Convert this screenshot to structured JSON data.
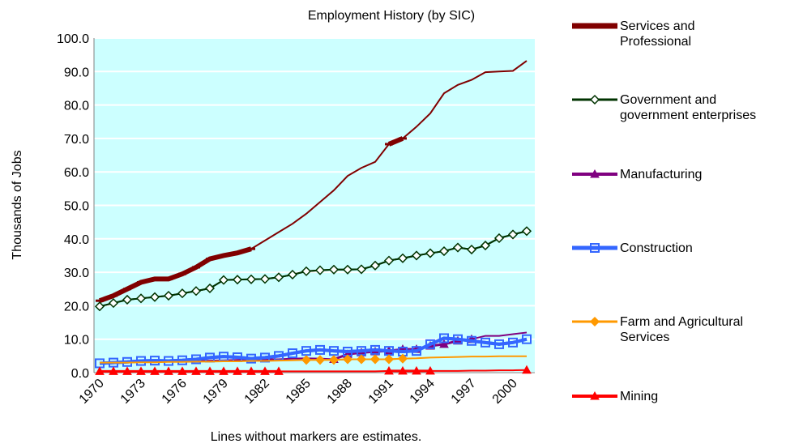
{
  "chart_data": {
    "type": "line",
    "title": "Employment History (by SIC)",
    "y_label": "Thousands of Jobs",
    "note": "Lines without markers are estimates.",
    "background": "#ccffff",
    "grid": true,
    "categories": [
      "1970",
      null,
      null,
      "1973",
      null,
      null,
      "1976",
      null,
      null,
      "1979",
      null,
      null,
      "1982",
      null,
      null,
      "1985",
      null,
      null,
      "1988",
      null,
      null,
      "1991",
      null,
      null,
      "1994",
      null,
      null,
      "1997",
      null,
      null,
      "2000",
      null
    ],
    "ylim": [
      0,
      100
    ],
    "yticks": [
      {
        "value": 0,
        "label": "0.0"
      },
      {
        "value": 10,
        "label": "10.0"
      },
      {
        "value": 20,
        "label": "20.0"
      },
      {
        "value": 30,
        "label": "30.0"
      },
      {
        "value": 40,
        "label": "40.0"
      },
      {
        "value": 50,
        "label": "50.0"
      },
      {
        "value": 60,
        "label": "60.0"
      },
      {
        "value": 70,
        "label": "70.0"
      },
      {
        "value": 80,
        "label": "80.0"
      },
      {
        "value": 90,
        "label": "90.0"
      },
      {
        "value": 100,
        "label": "100.0"
      }
    ],
    "series": [
      {
        "name": "Services and\nProfessional",
        "color": "#800000",
        "marker": "dash",
        "values": [
          21.5,
          23,
          25,
          27,
          28,
          28,
          29.5,
          31.5,
          34,
          35,
          35.8,
          37,
          39.5,
          42,
          44.5,
          47.5,
          51,
          54.5,
          58.8,
          61.2,
          63,
          68.3,
          70,
          73.5,
          77.5,
          83.5,
          86,
          87.5,
          89.8,
          90,
          90.2,
          93.2
        ],
        "marked": [
          true,
          true,
          true,
          true,
          true,
          true,
          true,
          true,
          true,
          true,
          true,
          true,
          false,
          false,
          false,
          false,
          false,
          false,
          false,
          false,
          false,
          true,
          true,
          false,
          false,
          false,
          false,
          false,
          false,
          false,
          false,
          false
        ]
      },
      {
        "name": "Government and\ngovernment enterprises",
        "color": "#003300",
        "marker": "diamond",
        "values": [
          19.8,
          20.8,
          21.8,
          22.2,
          22.6,
          23,
          23.7,
          24.4,
          25.2,
          27.7,
          27.8,
          27.9,
          28,
          28.5,
          29.3,
          30.3,
          30.6,
          30.8,
          30.8,
          30.9,
          32,
          33.5,
          34.2,
          35,
          35.7,
          36.3,
          37.4,
          36.8,
          38,
          40.2,
          41.3,
          42.3
        ],
        "marked": [
          true,
          true,
          true,
          true,
          true,
          true,
          true,
          true,
          true,
          true,
          true,
          true,
          true,
          true,
          true,
          true,
          true,
          true,
          true,
          true,
          true,
          true,
          true,
          true,
          true,
          true,
          true,
          true,
          true,
          true,
          true,
          true
        ]
      },
      {
        "name": "Manufacturing",
        "color": "#800080",
        "marker": "triangle",
        "values": [
          3,
          3,
          3.1,
          3.2,
          3.3,
          3.3,
          3.4,
          3.5,
          3.6,
          3.7,
          3.8,
          3.9,
          4,
          4,
          4.2,
          4.3,
          4.2,
          4,
          5.5,
          6,
          6.3,
          6.5,
          7,
          7,
          8,
          8.5,
          9.5,
          10,
          11,
          11,
          11.5,
          12
        ],
        "marked": [
          false,
          false,
          false,
          false,
          false,
          false,
          false,
          false,
          false,
          false,
          false,
          false,
          false,
          false,
          false,
          false,
          false,
          true,
          true,
          true,
          true,
          true,
          true,
          true,
          true,
          true,
          true,
          true,
          false,
          false,
          false,
          false
        ]
      },
      {
        "name": "Construction",
        "color": "#3366ff",
        "marker": "square",
        "values": [
          2.8,
          3,
          3.2,
          3.5,
          3.6,
          3.5,
          3.7,
          4,
          4.5,
          4.8,
          4.6,
          4.2,
          4.5,
          5,
          5.8,
          6.5,
          6.8,
          6.5,
          6.3,
          6.5,
          6.8,
          6.5,
          6.3,
          6.5,
          8.5,
          10.3,
          10,
          9.5,
          9,
          8.5,
          9,
          10
        ],
        "marked": [
          true,
          true,
          true,
          true,
          true,
          true,
          true,
          true,
          true,
          true,
          true,
          true,
          true,
          true,
          true,
          true,
          true,
          true,
          true,
          true,
          true,
          true,
          true,
          true,
          true,
          true,
          true,
          true,
          true,
          true,
          true,
          true
        ]
      },
      {
        "name": "Farm and Agricultural\nServices",
        "color": "#ff9900",
        "marker": "diamond",
        "values": [
          3,
          3,
          3,
          3.1,
          3.1,
          3.2,
          3.2,
          3.3,
          3.3,
          3.4,
          3.4,
          3.5,
          3.5,
          3.6,
          3.7,
          3.8,
          3.8,
          3.8,
          4,
          4,
          4,
          4,
          4.2,
          4.3,
          4.5,
          4.6,
          4.7,
          4.8,
          4.8,
          4.9,
          4.9,
          4.9
        ],
        "marked": [
          false,
          false,
          false,
          false,
          false,
          false,
          false,
          false,
          false,
          false,
          false,
          false,
          false,
          false,
          false,
          true,
          true,
          true,
          true,
          true,
          true,
          true,
          true,
          false,
          false,
          false,
          false,
          false,
          false,
          false,
          false,
          false
        ]
      },
      {
        "name": "Mining",
        "color": "#ff0000",
        "marker": "triangle",
        "values": [
          0.4,
          0.4,
          0.4,
          0.4,
          0.4,
          0.4,
          0.4,
          0.4,
          0.4,
          0.4,
          0.4,
          0.4,
          0.4,
          0.4,
          0.4,
          0.4,
          0.4,
          0.4,
          0.4,
          0.4,
          0.4,
          0.5,
          0.5,
          0.5,
          0.5,
          0.5,
          0.5,
          0.6,
          0.6,
          0.7,
          0.7,
          0.8
        ],
        "marked": [
          true,
          true,
          true,
          true,
          true,
          true,
          true,
          true,
          true,
          true,
          true,
          true,
          true,
          true,
          false,
          false,
          false,
          false,
          false,
          false,
          false,
          true,
          true,
          true,
          true,
          false,
          false,
          false,
          false,
          false,
          false,
          true
        ]
      }
    ]
  }
}
